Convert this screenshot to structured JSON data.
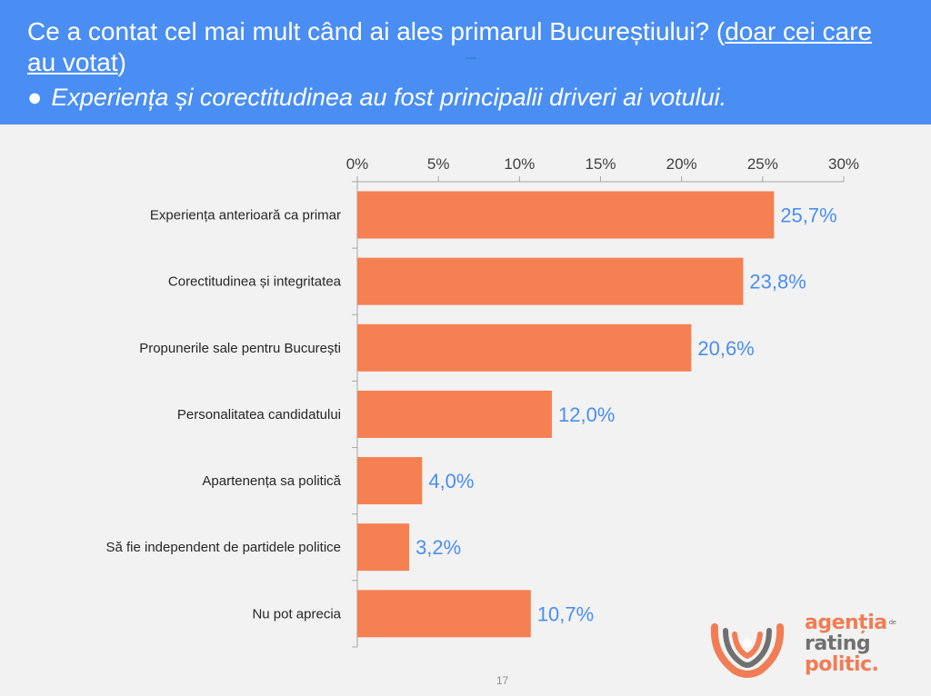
{
  "header": {
    "question": "Ce a contat cel mai mult când ai ales primarul Bucureștiului? (",
    "question_link": "doar cei care au votat",
    "question_end": ")",
    "bullet_symbol": "●",
    "bullet_text": "Experiența și corectitudinea au fost principalii driveri ai votului."
  },
  "chart_data": {
    "type": "bar",
    "orientation": "horizontal",
    "categories": [
      "Experiența anterioară ca primar",
      "Corectitudinea și integritatea",
      "Propunerile sale pentru București",
      "Personalitatea candidatului",
      "Apartenența sa politică",
      "Să fie independent de partidele politice",
      "Nu pot aprecia"
    ],
    "values": [
      25.7,
      23.8,
      20.6,
      12.0,
      4.0,
      3.2,
      10.7
    ],
    "value_labels": [
      "25,7%",
      "23,8%",
      "20,6%",
      "12,0%",
      "4,0%",
      "3,2%",
      "10,7%"
    ],
    "xlim": [
      0,
      30
    ],
    "xticks": [
      "0%",
      "5%",
      "10%",
      "15%",
      "20%",
      "25%",
      "30%"
    ],
    "x_axis_position": "top",
    "grid": false,
    "bar_color": "#f58052",
    "label_color": "#4a8ef3"
  },
  "footer": {
    "page_number": "17"
  },
  "logo": {
    "line1": "agenția",
    "small": "de",
    "line2": "rating",
    "line3": "politic.",
    "primary_color": "#f07d55",
    "secondary_color": "#707070"
  }
}
